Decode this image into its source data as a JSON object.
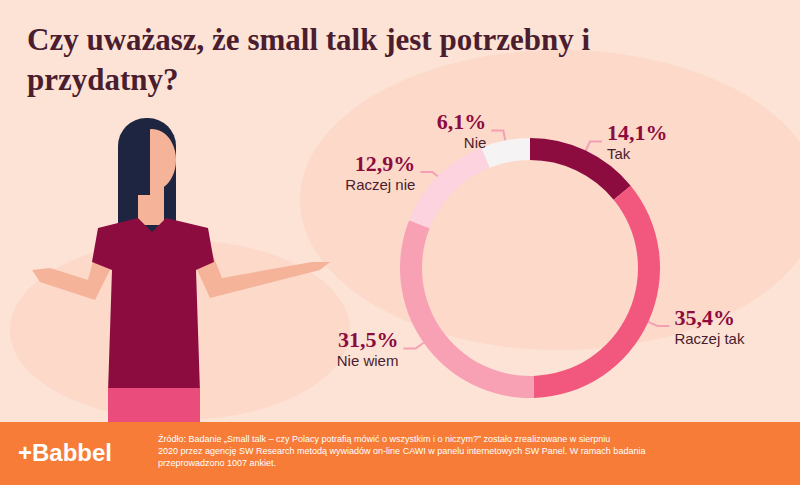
{
  "chart_data": {
    "type": "pie",
    "title": "Czy uważasz, że small talk jest potrzebny i przydatny?",
    "categories": [
      "Tak",
      "Raczej tak",
      "Nie wiem",
      "Raczej nie",
      "Nie"
    ],
    "values": [
      14.1,
      35.4,
      31.5,
      12.9,
      6.1
    ],
    "value_labels": [
      "14,1%",
      "35,4%",
      "31,5%",
      "12,9%",
      "6,1%"
    ],
    "colors": [
      "#8c0c40",
      "#f2577d",
      "#f8a1b5",
      "#fcd3de",
      "#f5f3f3"
    ],
    "data_labels": true,
    "annotations": [
      "+Babbel",
      "Źródło: Badanie „Small talk – czy Polacy potrafią mówić o wszystkim i o niczym?” zostało zrealizowane w sierpniu 2020 przez agencję SW Research metodą wywiadów on-line CAWI w panelu internetowych SW Panel. W ramach badania przeprowadzono 1007 ankiet."
    ]
  }
}
